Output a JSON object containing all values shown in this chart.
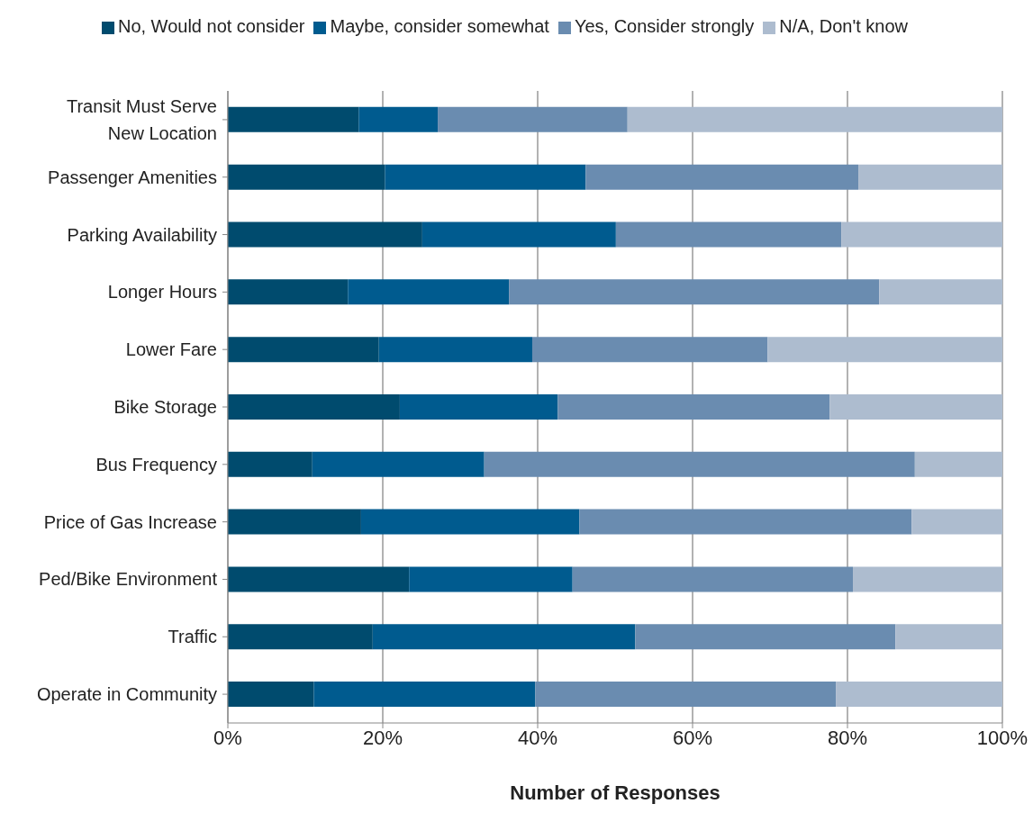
{
  "chart_data": {
    "type": "bar",
    "orientation": "horizontal",
    "stacked": true,
    "xlabel": "Number of Responses",
    "categories": [
      "Transit Must Serve New Location",
      "Passenger Amenities",
      "Parking Availability",
      "Longer Hours",
      "Lower Fare",
      "Bike Storage",
      "Bus Frequency",
      "Price of Gas Increase",
      "Ped/Bike Environment",
      "Traffic",
      "Operate in Community"
    ],
    "series": [
      {
        "name": "No, Would not consider",
        "color": "#004b6e",
        "values": [
          16.9,
          20.3,
          25.1,
          15.5,
          19.5,
          22.2,
          10.9,
          17.2,
          23.4,
          18.7,
          11.1
        ]
      },
      {
        "name": "Maybe, consider somewhat",
        "color": "#005b8f",
        "values": [
          10.2,
          25.9,
          25.0,
          20.8,
          19.8,
          20.4,
          22.2,
          28.2,
          21.1,
          33.9,
          28.6
        ]
      },
      {
        "name": "Yes, Consider strongly",
        "color": "#6a8cb0",
        "values": [
          24.5,
          35.2,
          29.1,
          47.8,
          30.4,
          35.1,
          55.6,
          42.9,
          36.2,
          33.6,
          38.8
        ]
      },
      {
        "name": "N/A, Don't know",
        "color": "#adbccf",
        "values": [
          48.4,
          18.6,
          20.8,
          15.9,
          30.3,
          22.3,
          11.3,
          11.7,
          19.3,
          13.8,
          21.5
        ]
      }
    ],
    "xlim": [
      0,
      100
    ],
    "xticks": [
      {
        "value": 0,
        "label": "0%"
      },
      {
        "value": 20,
        "label": "20%"
      },
      {
        "value": 40,
        "label": "40%"
      },
      {
        "value": 60,
        "label": "60%"
      },
      {
        "value": 80,
        "label": "80%"
      },
      {
        "value": 100,
        "label": "100%"
      }
    ],
    "grid": "x",
    "legend": "top"
  }
}
